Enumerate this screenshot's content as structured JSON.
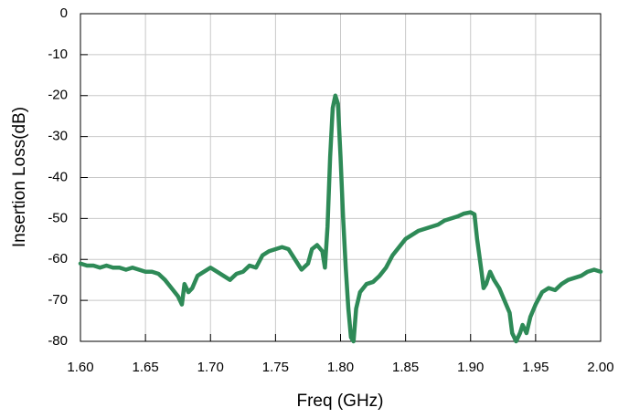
{
  "chart_data": {
    "type": "line",
    "x_label": "Freq (GHz)",
    "y_label": "Insertion Loss(dB)",
    "color": "#2e8a57",
    "grid": true,
    "xlim": [
      1.6,
      2.0
    ],
    "xticks": [
      {
        "value": 1.6,
        "label": "1.60"
      },
      1.65,
      {
        "value": 1.7,
        "label": "1.70"
      },
      1.75,
      {
        "value": 1.8,
        "label": "1.80"
      },
      1.85,
      {
        "value": 1.9,
        "label": "1.90"
      },
      1.95,
      {
        "value": 2.0,
        "label": "2.00"
      }
    ],
    "ylim": [
      -80,
      0
    ],
    "yticks": [
      0,
      -10,
      -20,
      -30,
      -40,
      -50,
      -60,
      -70,
      -80
    ],
    "x": [
      1.6,
      1.605,
      1.61,
      1.615,
      1.62,
      1.625,
      1.63,
      1.635,
      1.64,
      1.645,
      1.65,
      1.655,
      1.66,
      1.665,
      1.67,
      1.675,
      1.678,
      1.68,
      1.683,
      1.686,
      1.69,
      1.695,
      1.7,
      1.705,
      1.71,
      1.715,
      1.72,
      1.725,
      1.73,
      1.735,
      1.74,
      1.745,
      1.75,
      1.755,
      1.76,
      1.765,
      1.77,
      1.775,
      1.778,
      1.782,
      1.786,
      1.788,
      1.79,
      1.792,
      1.794,
      1.796,
      1.798,
      1.8,
      1.802,
      1.804,
      1.806,
      1.808,
      1.81,
      1.812,
      1.815,
      1.82,
      1.825,
      1.83,
      1.835,
      1.84,
      1.845,
      1.85,
      1.855,
      1.86,
      1.865,
      1.87,
      1.875,
      1.88,
      1.885,
      1.89,
      1.895,
      1.9,
      1.903,
      1.905,
      1.908,
      1.91,
      1.912,
      1.915,
      1.918,
      1.922,
      1.926,
      1.93,
      1.932,
      1.935,
      1.938,
      1.94,
      1.943,
      1.946,
      1.95,
      1.955,
      1.96,
      1.965,
      1.97,
      1.975,
      1.98,
      1.985,
      1.99,
      1.995,
      2.0
    ],
    "values": [
      -61,
      -61.5,
      -61.5,
      -62,
      -61.5,
      -62,
      -62,
      -62.5,
      -62,
      -62.5,
      -63,
      -63,
      -63.5,
      -65,
      -67,
      -69,
      -71,
      -66,
      -68,
      -67,
      -64,
      -63,
      -62,
      -63,
      -64,
      -65,
      -63.5,
      -63,
      -61.5,
      -62,
      -59,
      -58,
      -57.5,
      -57,
      -57.5,
      -60,
      -62.5,
      -61,
      -57.5,
      -56.5,
      -58,
      -62,
      -52,
      -35,
      -23,
      -20,
      -22,
      -35,
      -50,
      -62,
      -72,
      -79,
      -80,
      -72,
      -68,
      -66,
      -65.5,
      -64,
      -62,
      -59,
      -57,
      -55,
      -54,
      -53,
      -52.5,
      -52,
      -51.5,
      -50.5,
      -50,
      -49.5,
      -48.8,
      -48.5,
      -49,
      -55,
      -62,
      -67,
      -66,
      -63,
      -65,
      -67,
      -70,
      -73,
      -78,
      -80,
      -78,
      -76,
      -78,
      -74,
      -71,
      -68,
      -67,
      -67.5,
      -66,
      -65,
      -64.5,
      -64,
      -63,
      -62.5,
      -63
    ]
  }
}
